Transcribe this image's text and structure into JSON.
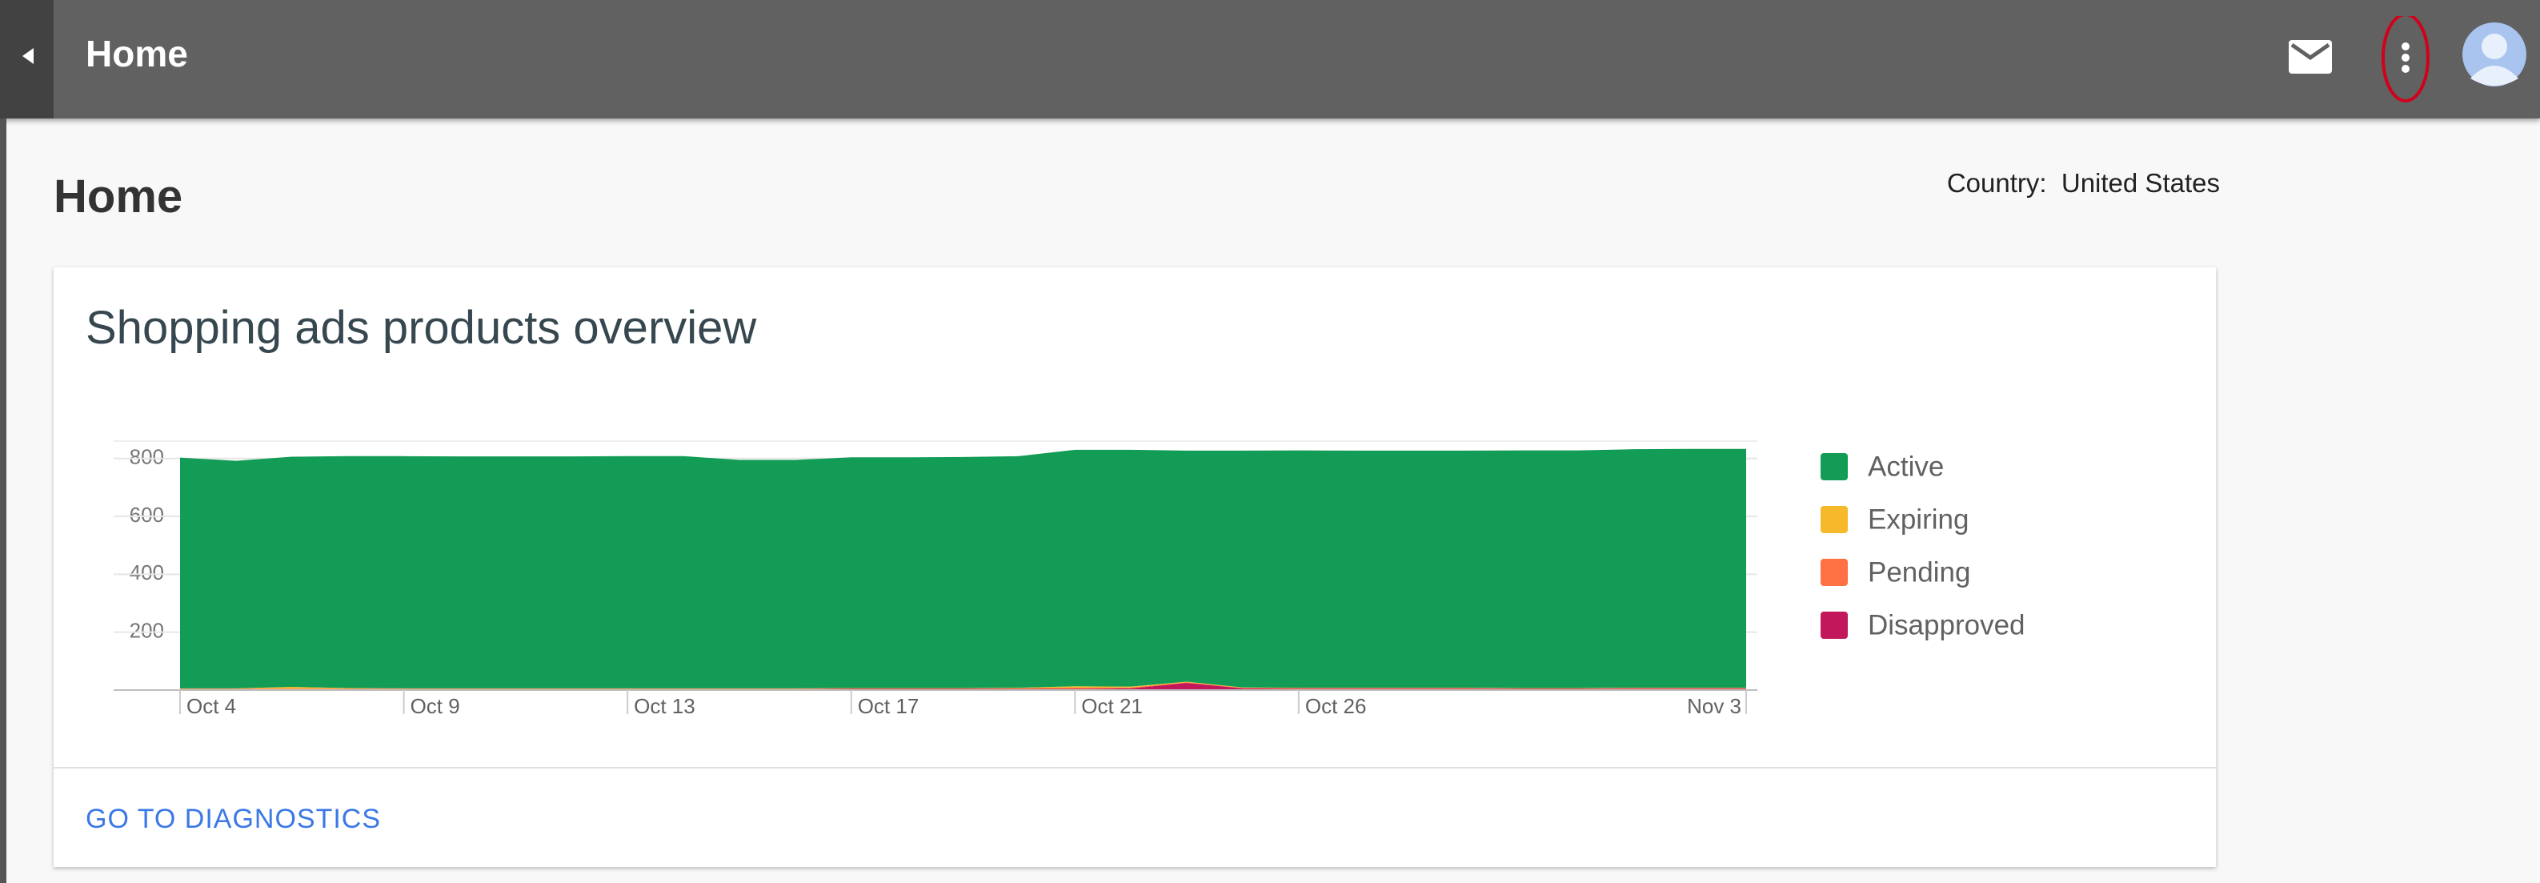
{
  "header": {
    "title": "Home"
  },
  "page": {
    "title": "Home",
    "country_label": "Country:",
    "country_value": "United States"
  },
  "card": {
    "title": "Shopping ads products overview",
    "link": "GO TO DIAGNOSTICS"
  },
  "chart_data": {
    "type": "area",
    "stacked": true,
    "categories": [
      "Oct 4",
      null,
      null,
      null,
      "Oct 9",
      null,
      null,
      null,
      "Oct 13",
      null,
      null,
      null,
      "Oct 17",
      null,
      null,
      null,
      "Oct 21",
      null,
      null,
      null,
      "Oct 26",
      null,
      null,
      null,
      null,
      null,
      null,
      null,
      "Nov 3"
    ],
    "series": [
      {
        "name": "Active",
        "color": "#129c55",
        "values": [
          797,
          786,
          795,
          801,
          802,
          801,
          801,
          801,
          802,
          802,
          789,
          789,
          797,
          797,
          798,
          800,
          817,
          818,
          798,
          818,
          820,
          819,
          819,
          819,
          821,
          821,
          824,
          825,
          825
        ]
      },
      {
        "name": "Expiring",
        "color": "#f6b92b",
        "values": [
          1,
          1,
          6,
          2,
          1,
          1,
          1,
          1,
          1,
          1,
          1,
          1,
          1,
          1,
          1,
          2,
          5,
          3,
          2,
          1,
          1,
          1,
          1,
          1,
          1,
          1,
          1,
          1,
          1
        ]
      },
      {
        "name": "Pending",
        "color": "#ff7043",
        "values": [
          2,
          2,
          2,
          2,
          2,
          2,
          2,
          2,
          2,
          2,
          2,
          2,
          2,
          2,
          2,
          2,
          4,
          3,
          2,
          2,
          2,
          2,
          2,
          2,
          2,
          2,
          2,
          2,
          2
        ]
      },
      {
        "name": "Disapproved",
        "color": "#c2185b",
        "values": [
          3,
          3,
          3,
          3,
          3,
          3,
          3,
          3,
          3,
          3,
          3,
          3,
          4,
          4,
          4,
          4,
          4,
          6,
          25,
          6,
          5,
          5,
          5,
          5,
          4,
          4,
          5,
          5,
          5
        ]
      }
    ],
    "ylim": [
      0,
      860
    ],
    "yticks": [
      200,
      400,
      600,
      800
    ],
    "grid": true,
    "legend": "right"
  }
}
